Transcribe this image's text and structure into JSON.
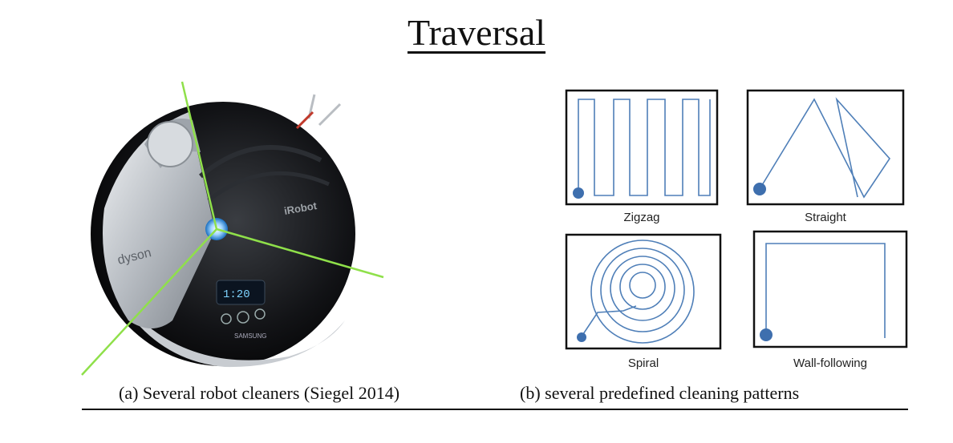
{
  "title": "Traversal",
  "captions": {
    "a": "(a) Several robot cleaners (Siegel 2014)",
    "b": "(b) several predefined cleaning patterns"
  },
  "robot_brands": {
    "dyson": "dyson",
    "irobot": "iRobot",
    "samsung": "SAMSUNG"
  },
  "patterns": [
    {
      "label": "Zigzag"
    },
    {
      "label": "Straight"
    },
    {
      "label": "Spiral"
    },
    {
      "label": "Wall-following"
    }
  ],
  "colors": {
    "path": "#4f7fb8",
    "divider_green": "#8fe04a"
  }
}
